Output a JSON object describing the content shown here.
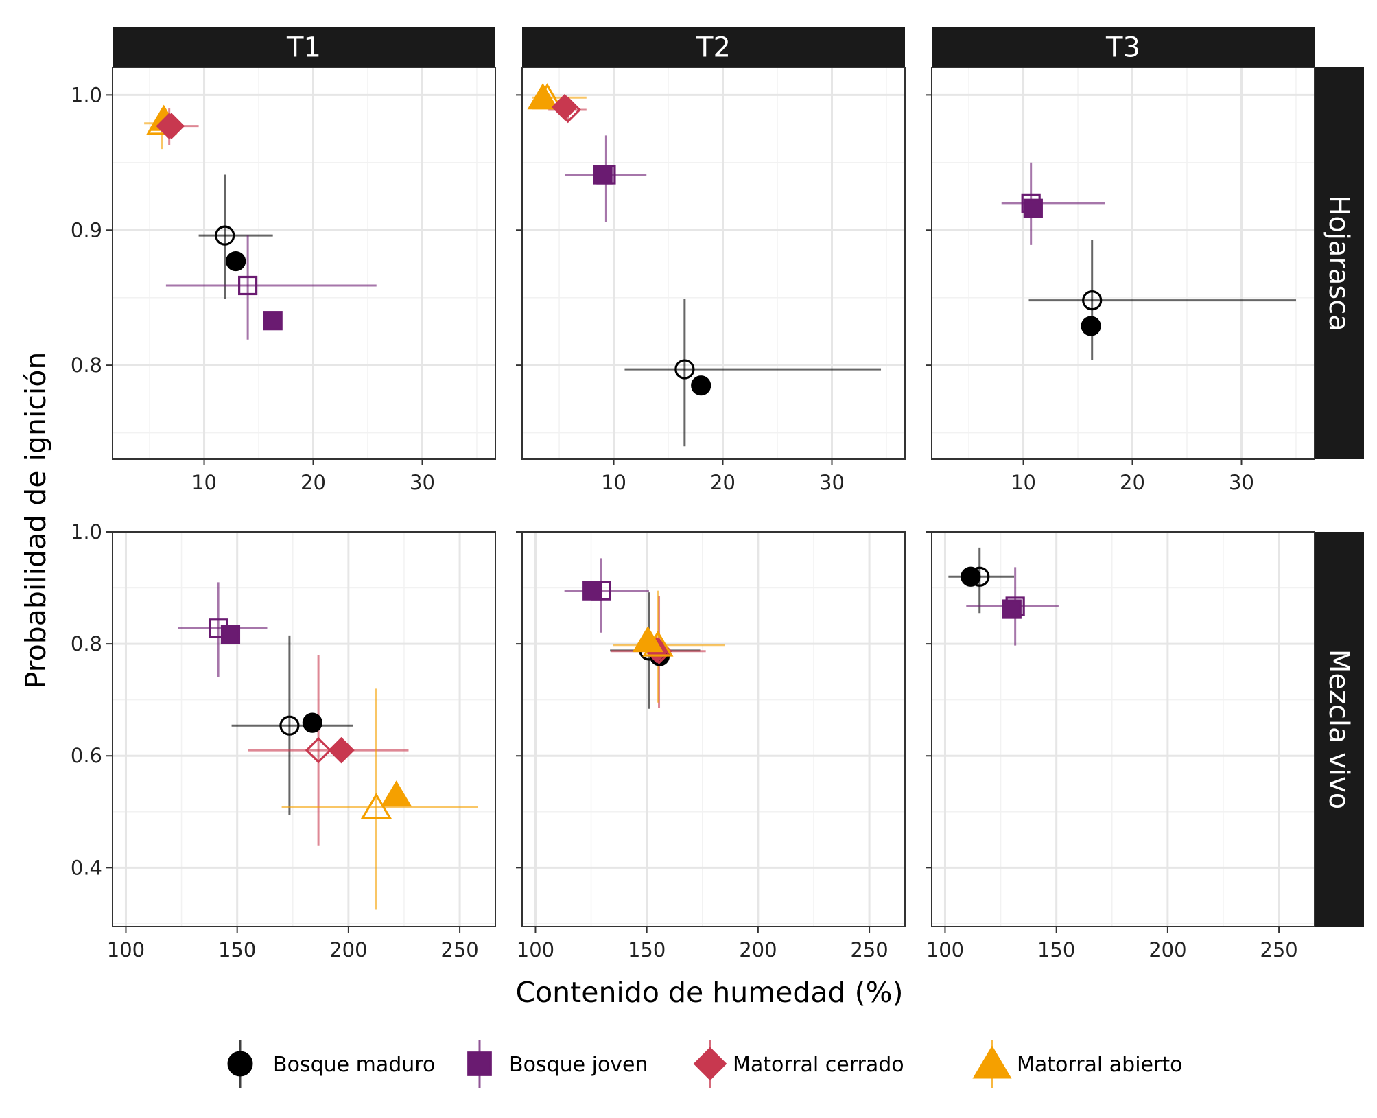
{
  "chart_data": {
    "type": "scatter",
    "xlabel": "Contenido de humedad (%)",
    "ylabel": "Probabilidad de ignición",
    "grid": true,
    "legend_position": "bottom",
    "columns": [
      "T1",
      "T2",
      "T3"
    ],
    "rows": [
      "Hojarasca",
      "Mezcla vivo"
    ],
    "open_symbols": "hollow",
    "filled_symbols": "filled",
    "series": [
      {
        "name": "Bosque maduro",
        "color": "#000000",
        "shape": "circle"
      },
      {
        "name": "Bosque joven",
        "color": "#6a1b71",
        "shape": "square"
      },
      {
        "name": "Matorral cerrado",
        "color": "#c8384f",
        "shape": "diamond"
      },
      {
        "name": "Matorral abierto",
        "color": "#f5a000",
        "shape": "triangle"
      }
    ],
    "panel_rows": [
      {
        "xlim": [
          1.6,
          36.7
        ],
        "xticks": [
          10,
          20,
          30
        ],
        "ylim": [
          0.7305,
          1.0205
        ],
        "yticks": [
          0.8,
          0.9,
          1.0
        ],
        "ytick_labels": [
          "0.8",
          "0.9",
          "1.0"
        ]
      },
      {
        "xlim": [
          94,
          266
        ],
        "xticks": [
          100,
          150,
          200,
          250
        ],
        "ylim": [
          0.295,
          1.0
        ],
        "yticks": [
          0.4,
          0.6,
          0.8,
          1.0
        ],
        "ytick_labels": [
          "0.4",
          "0.6",
          "0.8",
          "1.0"
        ]
      }
    ],
    "panels": [
      {
        "row": 0,
        "col": 0,
        "points": [
          {
            "series": "Bosque maduro",
            "fill": "hollow",
            "x": 11.9,
            "y": 0.896,
            "xerr": [
              9.5,
              16.3
            ],
            "yerr": [
              0.849,
              0.941
            ]
          },
          {
            "series": "Bosque maduro",
            "fill": "filled",
            "x": 12.9,
            "y": 0.877
          },
          {
            "series": "Bosque joven",
            "fill": "hollow",
            "x": 14.0,
            "y": 0.859,
            "xerr": [
              6.5,
              25.8
            ],
            "yerr": [
              0.819,
              0.896
            ]
          },
          {
            "series": "Bosque joven",
            "fill": "filled",
            "x": 16.3,
            "y": 0.833
          },
          {
            "series": "Matorral abierto",
            "fill": "hollow",
            "x": 6.1,
            "y": 0.979,
            "xerr": [
              4.5,
              7.5
            ],
            "yerr": [
              0.96,
              0.99
            ]
          },
          {
            "series": "Matorral abierto",
            "fill": "filled",
            "x": 6.3,
            "y": 0.982
          },
          {
            "series": "Matorral cerrado",
            "fill": "hollow",
            "x": 6.8,
            "y": 0.977,
            "xerr": [
              5.5,
              9.5
            ],
            "yerr": [
              0.963,
              0.99
            ]
          },
          {
            "series": "Matorral cerrado",
            "fill": "filled",
            "x": 7.0,
            "y": 0.977
          }
        ]
      },
      {
        "row": 0,
        "col": 1,
        "points": [
          {
            "series": "Bosque maduro",
            "fill": "hollow",
            "x": 16.5,
            "y": 0.797,
            "xerr": [
              11.0,
              34.5
            ],
            "yerr": [
              0.74,
              0.849
            ]
          },
          {
            "series": "Bosque maduro",
            "fill": "filled",
            "x": 18.0,
            "y": 0.785
          },
          {
            "series": "Bosque joven",
            "fill": "hollow",
            "x": 9.3,
            "y": 0.941,
            "xerr": [
              5.5,
              13.0
            ],
            "yerr": [
              0.906,
              0.97
            ]
          },
          {
            "series": "Bosque joven",
            "fill": "filled",
            "x": 9.0,
            "y": 0.941
          },
          {
            "series": "Matorral abierto",
            "fill": "hollow",
            "x": 3.9,
            "y": 0.998,
            "xerr": [
              2.5,
              7.5
            ],
            "yerr": [
              0.99,
              1.0
            ]
          },
          {
            "series": "Matorral abierto",
            "fill": "filled",
            "x": 3.5,
            "y": 0.998
          },
          {
            "series": "Matorral cerrado",
            "fill": "hollow",
            "x": 5.8,
            "y": 0.989,
            "xerr": [
              4.0,
              7.5
            ],
            "yerr": [
              0.98,
              0.997
            ]
          },
          {
            "series": "Matorral cerrado",
            "fill": "filled",
            "x": 5.5,
            "y": 0.991
          }
        ]
      },
      {
        "row": 0,
        "col": 2,
        "points": [
          {
            "series": "Bosque maduro",
            "fill": "hollow",
            "x": 16.3,
            "y": 0.848,
            "xerr": [
              10.5,
              35.0
            ],
            "yerr": [
              0.804,
              0.893
            ]
          },
          {
            "series": "Bosque maduro",
            "fill": "filled",
            "x": 16.2,
            "y": 0.829
          },
          {
            "series": "Bosque joven",
            "fill": "hollow",
            "x": 10.7,
            "y": 0.92,
            "xerr": [
              8.0,
              17.5
            ],
            "yerr": [
              0.889,
              0.95
            ]
          },
          {
            "series": "Bosque joven",
            "fill": "filled",
            "x": 10.9,
            "y": 0.916
          }
        ]
      },
      {
        "row": 1,
        "col": 0,
        "points": [
          {
            "series": "Bosque maduro",
            "fill": "hollow",
            "x": 173.5,
            "y": 0.654,
            "xerr": [
              147.5,
              202.0
            ],
            "yerr": [
              0.494,
              0.815
            ]
          },
          {
            "series": "Bosque maduro",
            "fill": "filled",
            "x": 183.8,
            "y": 0.659
          },
          {
            "series": "Bosque joven",
            "fill": "hollow",
            "x": 141.5,
            "y": 0.828,
            "xerr": [
              123.5,
              163.5
            ],
            "yerr": [
              0.74,
              0.91
            ]
          },
          {
            "series": "Bosque joven",
            "fill": "filled",
            "x": 147.0,
            "y": 0.817
          },
          {
            "series": "Matorral cerrado",
            "fill": "hollow",
            "x": 186.5,
            "y": 0.61,
            "xerr": [
              155.0,
              227.0
            ],
            "yerr": [
              0.44,
              0.78
            ]
          },
          {
            "series": "Matorral cerrado",
            "fill": "filled",
            "x": 196.8,
            "y": 0.61
          },
          {
            "series": "Matorral abierto",
            "fill": "hollow",
            "x": 212.5,
            "y": 0.508,
            "xerr": [
              170.0,
              258.0
            ],
            "yerr": [
              0.325,
              0.72
            ]
          },
          {
            "series": "Matorral abierto",
            "fill": "filled",
            "x": 221.5,
            "y": 0.53
          }
        ]
      },
      {
        "row": 1,
        "col": 1,
        "points": [
          {
            "series": "Bosque maduro",
            "fill": "hollow",
            "x": 151.0,
            "y": 0.788,
            "xerr": [
              133.5,
              174.0
            ],
            "yerr": [
              0.684,
              0.892
            ]
          },
          {
            "series": "Bosque maduro",
            "fill": "filled",
            "x": 155.8,
            "y": 0.778
          },
          {
            "series": "Bosque joven",
            "fill": "hollow",
            "x": 129.5,
            "y": 0.895,
            "xerr": [
              113.0,
              151.0
            ],
            "yerr": [
              0.82,
              0.953
            ]
          },
          {
            "series": "Bosque joven",
            "fill": "filled",
            "x": 125.5,
            "y": 0.895
          },
          {
            "series": "Matorral cerrado",
            "fill": "hollow",
            "x": 155.5,
            "y": 0.787,
            "xerr": [
              134.0,
              176.5
            ],
            "yerr": [
              0.685,
              0.885
            ]
          },
          {
            "series": "Matorral cerrado",
            "fill": "filled",
            "x": 154.5,
            "y": 0.789
          },
          {
            "series": "Matorral abierto",
            "fill": "hollow",
            "x": 155.0,
            "y": 0.798,
            "xerr": [
              135.0,
              185.0
            ],
            "yerr": [
              0.695,
              0.895
            ]
          },
          {
            "series": "Matorral abierto",
            "fill": "filled",
            "x": 150.5,
            "y": 0.806
          }
        ]
      },
      {
        "row": 1,
        "col": 2,
        "points": [
          {
            "series": "Bosque maduro",
            "fill": "hollow",
            "x": 115.5,
            "y": 0.92,
            "xerr": [
              101.5,
              131.0
            ],
            "yerr": [
              0.855,
              0.972
            ]
          },
          {
            "series": "Bosque maduro",
            "fill": "filled",
            "x": 111.5,
            "y": 0.92
          },
          {
            "series": "Bosque joven",
            "fill": "hollow",
            "x": 131.5,
            "y": 0.867,
            "xerr": [
              109.5,
              151.0
            ],
            "yerr": [
              0.797,
              0.937
            ]
          },
          {
            "series": "Bosque joven",
            "fill": "filled",
            "x": 130.0,
            "y": 0.862
          }
        ]
      }
    ]
  }
}
